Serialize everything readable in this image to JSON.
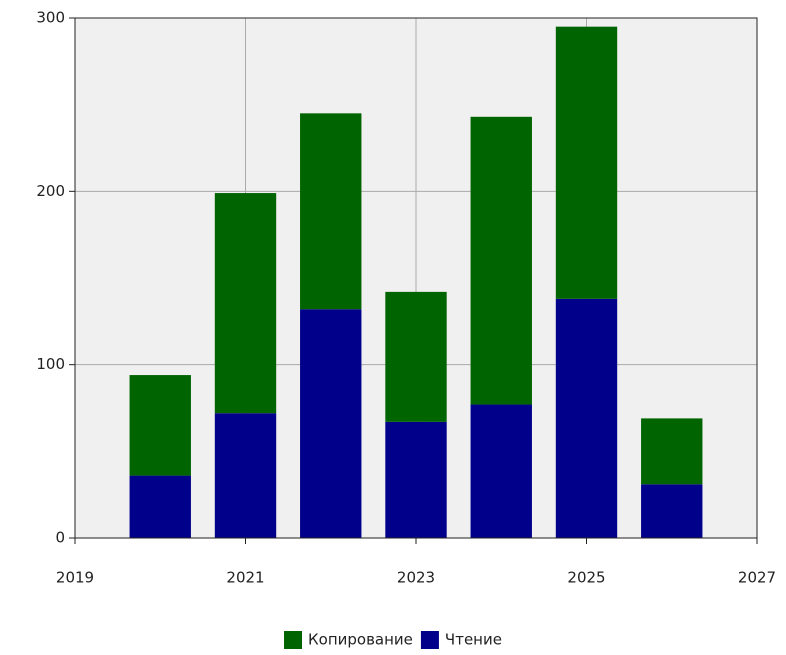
{
  "chart_data": {
    "type": "stacked_bar",
    "x": [
      2020,
      2021,
      2022,
      2023,
      2024,
      2025,
      2026
    ],
    "series": [
      {
        "name": "Копирование",
        "color": "#006400",
        "values": [
          58,
          127,
          113,
          75,
          166,
          157,
          38
        ]
      },
      {
        "name": "Чтение",
        "color": "#00008b",
        "values": [
          36,
          72,
          132,
          67,
          77,
          138,
          31
        ]
      }
    ],
    "xlim": [
      2019,
      2027
    ],
    "xticks": [
      2019,
      2021,
      2023,
      2025,
      2027
    ],
    "ylim": [
      0,
      300
    ],
    "yticks": [
      0,
      100,
      200,
      300
    ],
    "grid": true,
    "legend": "bottom"
  }
}
